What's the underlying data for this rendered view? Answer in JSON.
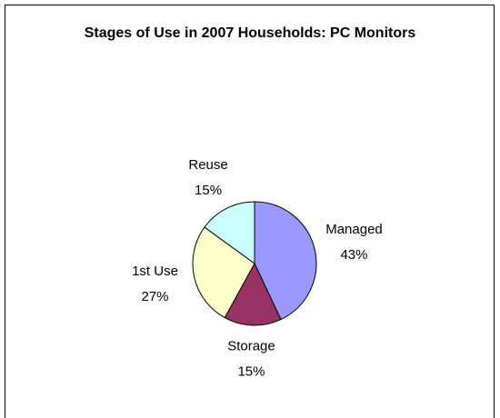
{
  "chart_data": {
    "type": "pie",
    "title": "Stages of Use in 2007 Households: PC Monitors",
    "categories": [
      "Managed",
      "Storage",
      "1st Use",
      "Reuse"
    ],
    "values": [
      43,
      15,
      27,
      15
    ],
    "value_labels": [
      "43%",
      "15%",
      "27%",
      "15%"
    ],
    "colors": [
      "#9999ff",
      "#993366",
      "#ffffcc",
      "#ccffff"
    ]
  }
}
